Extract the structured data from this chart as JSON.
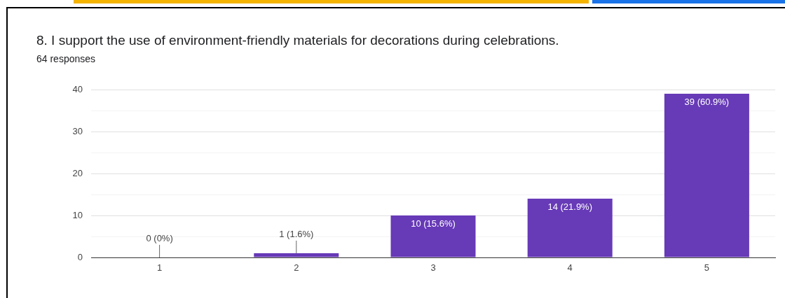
{
  "chart_data": {
    "type": "bar",
    "title": "8. I support the use of environment-friendly materials for decorations during celebrations.",
    "subtitle": "64 responses",
    "categories": [
      "1",
      "2",
      "3",
      "4",
      "5"
    ],
    "values": [
      0,
      1,
      10,
      14,
      39
    ],
    "value_labels": [
      "0 (0%)",
      "1 (1.6%)",
      "10 (15.6%)",
      "14 (21.9%)",
      "39 (60.9%)"
    ],
    "color": "#673ab7",
    "ylim": [
      0,
      40
    ],
    "yticks": [
      0,
      {
        "value": 5,
        "label": null
      },
      10,
      {
        "value": 15,
        "label": null
      },
      20,
      {
        "value": 25,
        "label": null
      },
      30,
      {
        "value": 35,
        "label": null
      },
      40
    ],
    "grid": "y",
    "legend": false
  }
}
